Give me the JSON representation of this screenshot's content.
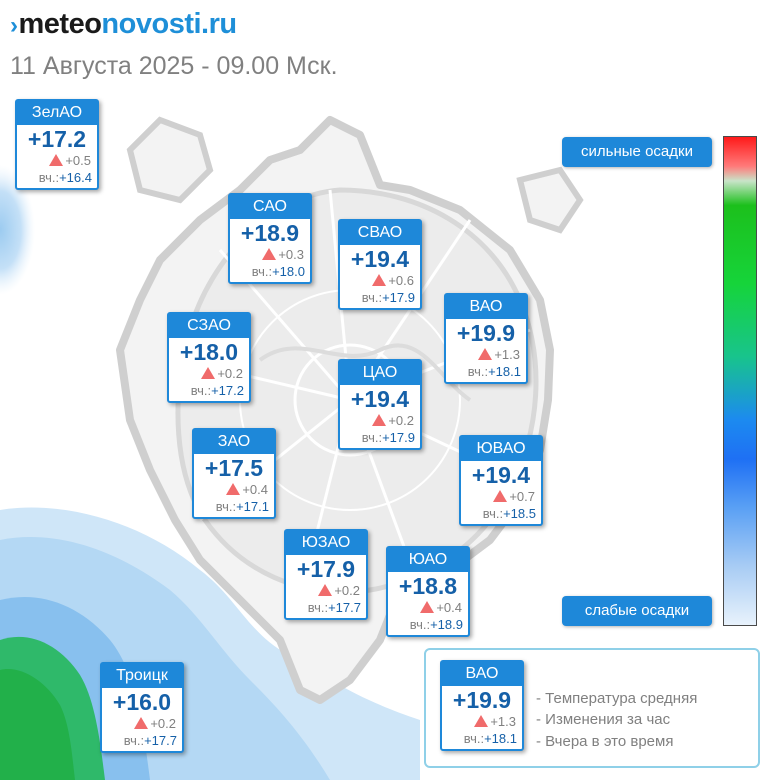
{
  "header": {
    "logo_part1": "meteo",
    "logo_part2": "novosti.ru",
    "subtitle": "11 Августа 2025 - 09.00 Мск."
  },
  "districts": [
    {
      "name": "ЗелАО",
      "temp": "+17.2",
      "delta": "+0.5",
      "yesterday_label": "вч.:",
      "yesterday": "+16.4"
    },
    {
      "name": "САО",
      "temp": "+18.9",
      "delta": "+0.3",
      "yesterday_label": "вч.:",
      "yesterday": "+18.0"
    },
    {
      "name": "СВАО",
      "temp": "+19.4",
      "delta": "+0.6",
      "yesterday_label": "вч.:",
      "yesterday": "+17.9"
    },
    {
      "name": "ВАО",
      "temp": "+19.9",
      "delta": "+1.3",
      "yesterday_label": "вч.:",
      "yesterday": "+18.1"
    },
    {
      "name": "СЗАО",
      "temp": "+18.0",
      "delta": "+0.2",
      "yesterday_label": "вч.:",
      "yesterday": "+17.2"
    },
    {
      "name": "ЦАО",
      "temp": "+19.4",
      "delta": "+0.2",
      "yesterday_label": "вч.:",
      "yesterday": "+17.9"
    },
    {
      "name": "ЗАО",
      "temp": "+17.5",
      "delta": "+0.4",
      "yesterday_label": "вч.:",
      "yesterday": "+17.1"
    },
    {
      "name": "ЮВАО",
      "temp": "+19.4",
      "delta": "+0.7",
      "yesterday_label": "вч.:",
      "yesterday": "+18.5"
    },
    {
      "name": "ЮЗАО",
      "temp": "+17.9",
      "delta": "+0.2",
      "yesterday_label": "вч.:",
      "yesterday": "+17.7"
    },
    {
      "name": "ЮАО",
      "temp": "+18.8",
      "delta": "+0.4",
      "yesterday_label": "вч.:",
      "yesterday": "+18.9"
    },
    {
      "name": "Троицк",
      "temp": "+16.0",
      "delta": "+0.2",
      "yesterday_label": "вч.:",
      "yesterday": "+17.7"
    }
  ],
  "precip_scale": {
    "top_label": "сильные осадки",
    "bottom_label": "слабые осадки",
    "colors": [
      "#ff1a1a",
      "#1cc01c",
      "#1c8af0",
      "#e8f2fc"
    ]
  },
  "legend": {
    "sample": {
      "name": "ВАО",
      "temp": "+19.9",
      "delta": "+1.3",
      "yesterday_label": "вч.:",
      "yesterday": "+18.1"
    },
    "items": [
      "- Температура средняя",
      "- Изменения за час",
      "- Вчера в это время"
    ]
  },
  "colors": {
    "accent": "#1e88d9",
    "temp_text": "#1560a8",
    "delta_up": "#f06b6b"
  }
}
